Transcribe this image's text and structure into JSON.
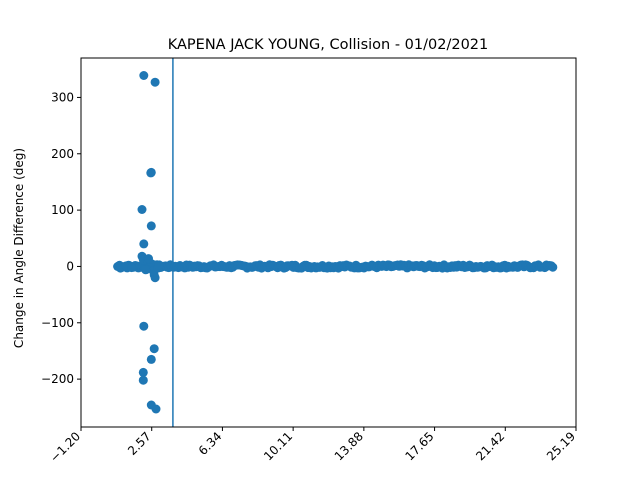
{
  "chart_data": {
    "type": "scatter",
    "title": "KAPENA JACK YOUNG, Collision - 01/02/2021",
    "xlabel": "",
    "ylabel": "Change in Angle Difference (deg)",
    "xlim": [
      -1.2,
      25.19
    ],
    "ylim": [
      -285,
      370
    ],
    "xticks": [
      -1.2,
      2.57,
      6.34,
      10.11,
      13.88,
      17.65,
      21.42,
      25.19
    ],
    "xtick_labels": [
      "−1.20",
      "2.57",
      "6.34",
      "10.11",
      "13.88",
      "17.65",
      "21.42",
      "25.19"
    ],
    "yticks": [
      -200,
      -100,
      0,
      100,
      200,
      300
    ],
    "ytick_labels": [
      "−200",
      "−100",
      "0",
      "100",
      "200",
      "300"
    ],
    "vline_x": 3.7,
    "grid": false,
    "color": "#1f77b4",
    "points": {
      "x": [
        2.15,
        2.75,
        2.55,
        2.52,
        2.05,
        2.55,
        2.15,
        2.05,
        2.12,
        2.35,
        2.55,
        2.85,
        2.45,
        2.3,
        2.7,
        2.75,
        2.15,
        2.55,
        2.7,
        2.12,
        2.12,
        2.55,
        2.8,
        2.65,
        2.4,
        2.9,
        2.25,
        2.95,
        0.85,
        0.9,
        1.2,
        1.5
      ],
      "y": [
        339,
        327,
        167,
        166,
        101,
        72,
        40,
        18,
        12,
        10,
        5,
        3,
        -2,
        -5,
        -15,
        -20,
        -106,
        -165,
        -146,
        -188,
        -202,
        -246,
        -253,
        -8,
        14,
        -3,
        -6,
        2,
        2,
        -3,
        1,
        -2
      ]
    },
    "band": {
      "x_start": 0.75,
      "x_end": 24.0,
      "y_spread": 3
    }
  }
}
